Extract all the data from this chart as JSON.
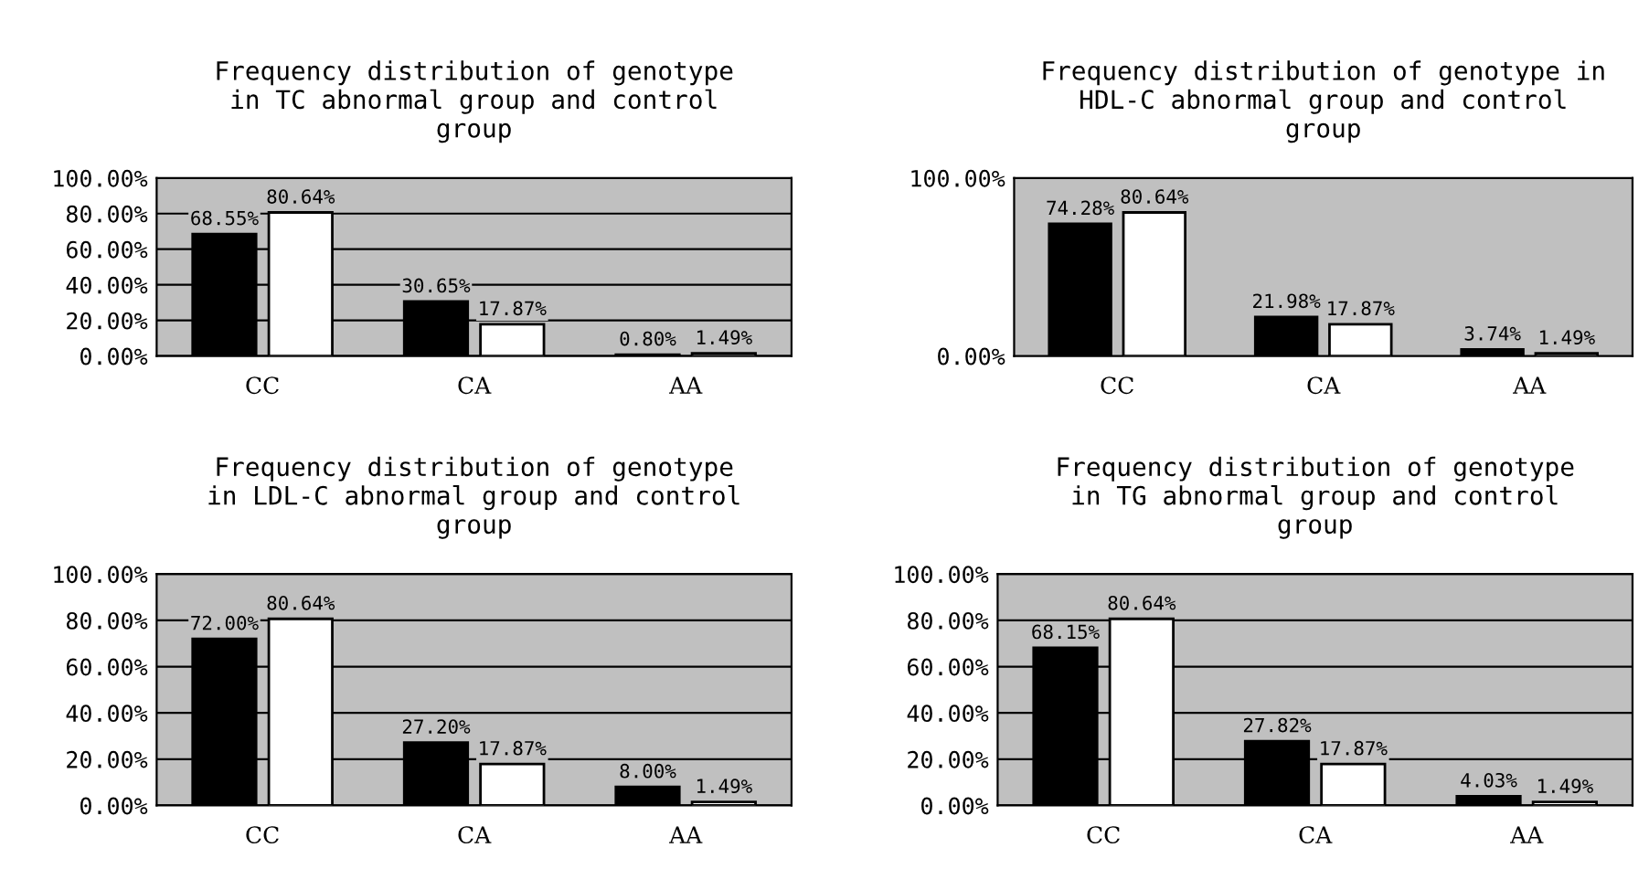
{
  "chart_data": [
    {
      "type": "bar",
      "title": "Frequency distribution of genotype\nin TC abnormal group and control\ngroup",
      "categories": [
        "CC",
        "CA",
        "AA"
      ],
      "series": [
        {
          "color": "#000000",
          "values": [
            68.55,
            30.65,
            0.8
          ],
          "value_labels": [
            "68.55%",
            "30.65%",
            "0.80%"
          ]
        },
        {
          "color": "#ffffff",
          "values": [
            80.64,
            17.87,
            1.49
          ],
          "value_labels": [
            "80.64%",
            "17.87%",
            "1.49%"
          ]
        }
      ],
      "ylim": [
        0,
        100
      ],
      "yticks": [
        {
          "value": 0,
          "label": "0.00%"
        },
        {
          "value": 20,
          "label": "20.00%"
        },
        {
          "value": 40,
          "label": "40.00%"
        },
        {
          "value": 60,
          "label": "60.00%"
        },
        {
          "value": 80,
          "label": "80.00%"
        },
        {
          "value": 100,
          "label": "100.00%"
        }
      ],
      "grid": "y",
      "legend": false
    },
    {
      "type": "bar",
      "title": "Frequency distribution of genotype in\nHDL-C abnormal group and control\ngroup",
      "categories": [
        "CC",
        "CA",
        "AA"
      ],
      "series": [
        {
          "color": "#000000",
          "values": [
            74.28,
            21.98,
            3.74
          ],
          "value_labels": [
            "74.28%",
            "21.98%",
            "3.74%"
          ]
        },
        {
          "color": "#ffffff",
          "values": [
            80.64,
            17.87,
            1.49
          ],
          "value_labels": [
            "80.64%",
            "17.87%",
            "1.49%"
          ]
        }
      ],
      "ylim": [
        0,
        100
      ],
      "yticks": [
        {
          "value": 0,
          "label": "0.00%"
        },
        {
          "value": 100,
          "label": "100.00%"
        }
      ],
      "grid": false,
      "legend": false
    },
    {
      "type": "bar",
      "title": "Frequency distribution of genotype\nin LDL-C abnormal group and control\ngroup",
      "categories": [
        "CC",
        "CA",
        "AA"
      ],
      "series": [
        {
          "color": "#000000",
          "values": [
            72.0,
            27.2,
            8.0
          ],
          "value_labels": [
            "72.00%",
            "27.20%",
            "8.00%"
          ]
        },
        {
          "color": "#ffffff",
          "values": [
            80.64,
            17.87,
            1.49
          ],
          "value_labels": [
            "80.64%",
            "17.87%",
            "1.49%"
          ]
        }
      ],
      "ylim": [
        0,
        100
      ],
      "yticks": [
        {
          "value": 0,
          "label": "0.00%"
        },
        {
          "value": 20,
          "label": "20.00%"
        },
        {
          "value": 40,
          "label": "40.00%"
        },
        {
          "value": 60,
          "label": "60.00%"
        },
        {
          "value": 80,
          "label": "80.00%"
        },
        {
          "value": 100,
          "label": "100.00%"
        }
      ],
      "grid": "y",
      "legend": false
    },
    {
      "type": "bar",
      "title": "Frequency distribution of genotype\nin TG abnormal group and control\ngroup",
      "categories": [
        "CC",
        "CA",
        "AA"
      ],
      "series": [
        {
          "color": "#000000",
          "values": [
            68.15,
            27.82,
            4.03
          ],
          "value_labels": [
            "68.15%",
            "27.82%",
            "4.03%"
          ]
        },
        {
          "color": "#ffffff",
          "values": [
            80.64,
            17.87,
            1.49
          ],
          "value_labels": [
            "80.64%",
            "17.87%",
            "1.49%"
          ]
        }
      ],
      "ylim": [
        0,
        100
      ],
      "yticks": [
        {
          "value": 0,
          "label": "0.00%"
        },
        {
          "value": 20,
          "label": "20.00%"
        },
        {
          "value": 40,
          "label": "40.00%"
        },
        {
          "value": 60,
          "label": "60.00%"
        },
        {
          "value": 80,
          "label": "80.00%"
        },
        {
          "value": 100,
          "label": "100.00%"
        }
      ],
      "grid": "y",
      "legend": false
    }
  ]
}
